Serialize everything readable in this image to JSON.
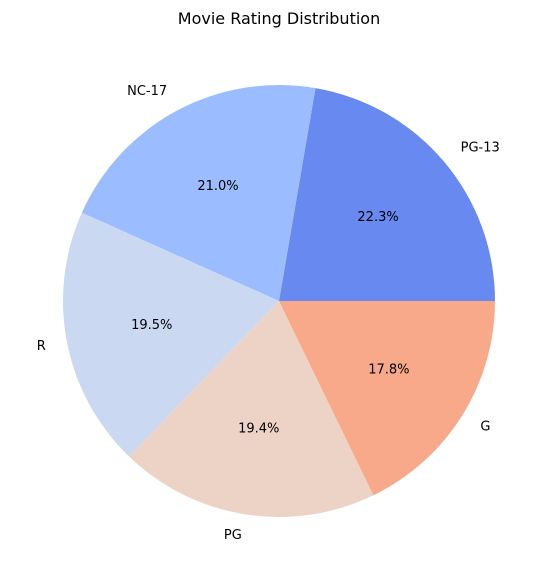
{
  "chart_data": {
    "type": "pie",
    "title": "Movie Rating Distribution",
    "categories": [
      "PG-13",
      "NC-17",
      "R",
      "PG",
      "G"
    ],
    "values": [
      22.3,
      21.0,
      19.5,
      19.4,
      17.8
    ],
    "percent_labels": [
      "22.3%",
      "21.0%",
      "19.5%",
      "19.4%",
      "17.8%"
    ],
    "colors": [
      "#6889f0",
      "#9bbcfe",
      "#cad8f1",
      "#edd3c5",
      "#f7a989"
    ],
    "start_angle_deg": 0,
    "direction": "counterclockwise",
    "legend": "none"
  }
}
